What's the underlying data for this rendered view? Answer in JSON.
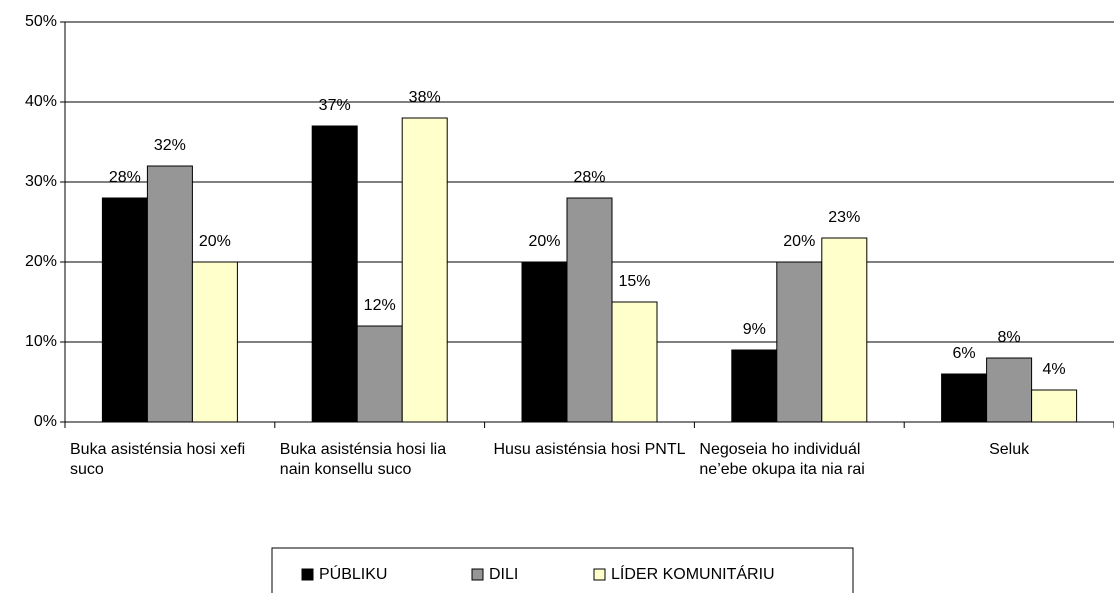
{
  "chart_data": {
    "type": "bar",
    "categories": [
      "Buka asisténsia hosi xefi suco",
      "Buka asisténsia hosi lia nain konsellu suco",
      "Husu asisténsia hosi PNTL",
      "Negoseia ho individuál ne’ebe okupa ita nia rai",
      "Seluk"
    ],
    "series": [
      {
        "name": "PÚBLIKU",
        "color": "#000000",
        "values": [
          28,
          37,
          20,
          9,
          6
        ],
        "value_labels": [
          "28%",
          "37%",
          "20%",
          "9%",
          "6%"
        ]
      },
      {
        "name": "DILI",
        "color": "#969696",
        "values": [
          32,
          12,
          28,
          20,
          8
        ],
        "value_labels": [
          "32%",
          "12%",
          "28%",
          "20%",
          "8%"
        ]
      },
      {
        "name": "LÍDER KOMUNITÁRIU",
        "color": "#ffffcc",
        "values": [
          20,
          38,
          15,
          23,
          4
        ],
        "value_labels": [
          "20%",
          "38%",
          "15%",
          "23%",
          "4%"
        ]
      }
    ],
    "ylim": [
      0,
      50
    ],
    "yticks": [
      {
        "value": 0,
        "label": "0%"
      },
      {
        "value": 10,
        "label": "10%"
      },
      {
        "value": 20,
        "label": "20%"
      },
      {
        "value": 30,
        "label": "30%"
      },
      {
        "value": 40,
        "label": "40%"
      },
      {
        "value": 50,
        "label": "50%"
      }
    ],
    "grid": true,
    "legend": "bottom"
  }
}
